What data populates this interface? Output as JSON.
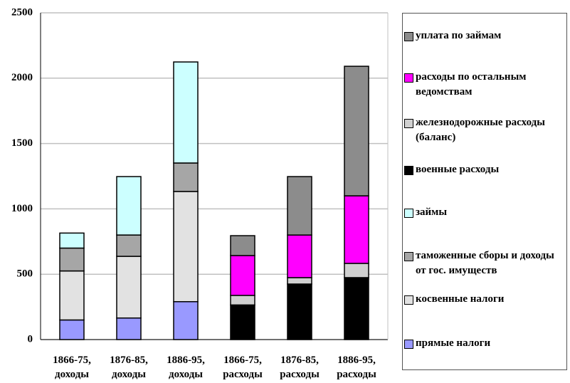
{
  "chart_data": {
    "type": "stacked_bar",
    "categories": [
      "1866-75, доходы",
      "1876-85, доходы",
      "1886-95, доходы",
      "1866-75, расходы",
      "1876-85, расходы",
      "1886-95, расходы"
    ],
    "series": [
      {
        "name": "уплата по займам",
        "color": "#8c8c8c",
        "values": [
          null,
          null,
          null,
          152,
          447,
          991
        ]
      },
      {
        "name": "расходы по остальным ведомствам",
        "color": "#ff00ff",
        "values": [
          null,
          null,
          null,
          305,
          326,
          517
        ]
      },
      {
        "name": "железнодорожные расходы (баланс)",
        "color": "#d0d0d0",
        "values": [
          null,
          null,
          null,
          73,
          49,
          109
        ]
      },
      {
        "name": "военные расходы",
        "color": "#000000",
        "values": [
          null,
          null,
          null,
          265,
          425,
          474
        ]
      },
      {
        "name": "займы",
        "color": "#ccffff",
        "values": [
          115,
          447,
          773,
          null,
          null,
          null
        ]
      },
      {
        "name": "таможенные сборы и доходы от гос. имуществ",
        "color": "#a6a6a6",
        "values": [
          175,
          163,
          218,
          null,
          null,
          null
        ]
      },
      {
        "name": "косвенные налоги",
        "color": "#e2e2e2",
        "values": [
          375,
          472,
          843,
          null,
          null,
          null
        ]
      },
      {
        "name": "прямые налоги",
        "color": "#9999ff",
        "values": [
          150,
          165,
          290,
          null,
          null,
          null
        ]
      }
    ],
    "ylim": [
      0,
      2500
    ],
    "yticks": [
      0,
      500,
      1000,
      1500,
      2000,
      2500
    ],
    "grid": true
  }
}
